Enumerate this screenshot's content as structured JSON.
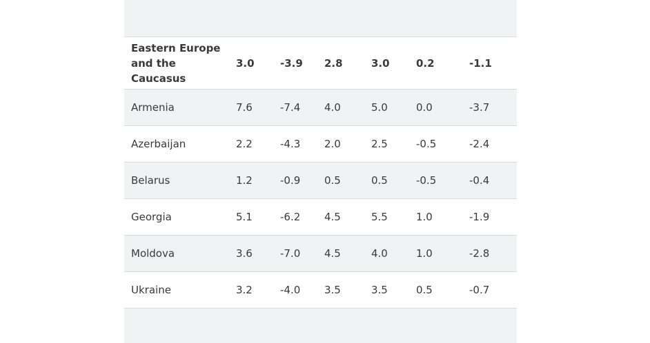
{
  "table": {
    "region": {
      "name": "Eastern Europe and the Caucasus",
      "values": [
        "3.0",
        "-3.9",
        "2.8",
        "3.0",
        "0.2",
        "-1.1"
      ]
    },
    "rows": [
      {
        "name": "Armenia",
        "values": [
          "7.6",
          "-7.4",
          "4.0",
          "5.0",
          "0.0",
          "-3.7"
        ]
      },
      {
        "name": "Azerbaijan",
        "values": [
          "2.2",
          "-4.3",
          "2.0",
          "2.5",
          "-0.5",
          "-2.4"
        ]
      },
      {
        "name": "Belarus",
        "values": [
          "1.2",
          "-0.9",
          "0.5",
          "0.5",
          "-0.5",
          "-0.4"
        ]
      },
      {
        "name": "Georgia",
        "values": [
          "5.1",
          "-6.2",
          "4.5",
          "5.5",
          "1.0",
          "-1.9"
        ]
      },
      {
        "name": "Moldova",
        "values": [
          "3.6",
          "-7.0",
          "4.5",
          "4.0",
          "1.0",
          "-2.8"
        ]
      },
      {
        "name": "Ukraine",
        "values": [
          "3.2",
          "-4.0",
          "3.5",
          "3.5",
          "0.5",
          "-0.7"
        ]
      }
    ]
  }
}
